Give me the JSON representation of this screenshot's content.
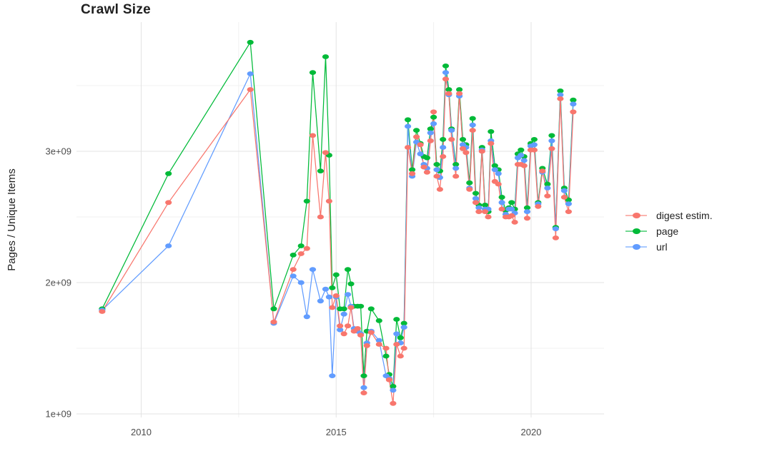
{
  "page": {
    "background": "#ffffff"
  },
  "chart_data": {
    "type": "line",
    "title": "Crawl Size",
    "xlabel": "",
    "ylabel": "Pages / Unique Items",
    "value_unit": "pages / items, in units of 1e9 (billions)",
    "grid": true,
    "x_axis": {
      "range": [
        2008.3,
        2021.9
      ],
      "ticks": [
        {
          "v": 2010,
          "label": "2010"
        },
        {
          "v": 2015,
          "label": "2015"
        },
        {
          "v": 2020,
          "label": "2020"
        }
      ],
      "minor": [
        2012.5,
        2017.5
      ]
    },
    "y_axis": {
      "range": [
        0.97,
        4.0
      ],
      "ticks": [
        {
          "v": 1,
          "label": "1e+09"
        },
        {
          "v": 2,
          "label": "2e+09"
        },
        {
          "v": 3,
          "label": "3e+09"
        }
      ],
      "minor": [
        1.5,
        2.5,
        3.5
      ]
    },
    "legend": {
      "position": "right",
      "entries": [
        {
          "label": "digest estim.",
          "color": "#F8766D"
        },
        {
          "label": "page",
          "color": "#00BA38"
        },
        {
          "label": "url",
          "color": "#619CFF"
        }
      ]
    },
    "x": [
      2009.0,
      2010.7,
      2012.8,
      2013.4,
      2013.9,
      2014.1,
      2014.25,
      2014.4,
      2014.6,
      2014.73,
      2014.82,
      2014.9,
      2015.0,
      2015.1,
      2015.2,
      2015.3,
      2015.38,
      2015.46,
      2015.55,
      2015.63,
      2015.71,
      2015.79,
      2015.9,
      2016.1,
      2016.28,
      2016.36,
      2016.46,
      2016.55,
      2016.65,
      2016.74,
      2016.84,
      2016.95,
      2017.06,
      2017.16,
      2017.25,
      2017.33,
      2017.42,
      2017.5,
      2017.58,
      2017.66,
      2017.74,
      2017.81,
      2017.89,
      2017.96,
      2018.07,
      2018.16,
      2018.25,
      2018.33,
      2018.42,
      2018.5,
      2018.58,
      2018.66,
      2018.74,
      2018.82,
      2018.9,
      2018.97,
      2019.07,
      2019.16,
      2019.25,
      2019.35,
      2019.43,
      2019.5,
      2019.58,
      2019.66,
      2019.74,
      2019.82,
      2019.9,
      2019.99,
      2020.08,
      2020.18,
      2020.29,
      2020.42,
      2020.53,
      2020.63,
      2020.75,
      2020.85,
      2020.96,
      2021.08
    ],
    "series": [
      {
        "name": "digest estim.",
        "color": "#F8766D",
        "values": [
          1.78,
          2.61,
          3.47,
          1.7,
          2.1,
          2.22,
          2.26,
          3.12,
          2.5,
          2.99,
          2.62,
          1.81,
          1.9,
          1.67,
          1.61,
          1.67,
          1.81,
          1.63,
          1.65,
          1.6,
          1.16,
          1.52,
          1.62,
          1.53,
          1.5,
          1.26,
          1.08,
          1.53,
          1.44,
          1.5,
          3.03,
          2.83,
          3.11,
          3.05,
          2.88,
          2.84,
          3.08,
          3.3,
          2.81,
          2.71,
          2.96,
          3.55,
          3.44,
          3.09,
          2.81,
          3.44,
          3.02,
          2.99,
          2.71,
          3.16,
          2.61,
          2.54,
          3.0,
          2.54,
          2.5,
          3.06,
          2.77,
          2.75,
          2.56,
          2.5,
          2.5,
          2.51,
          2.46,
          2.9,
          2.9,
          2.89,
          2.49,
          3.01,
          3.01,
          2.58,
          2.85,
          2.66,
          3.02,
          2.34,
          3.4,
          2.65,
          2.54,
          3.3
        ]
      },
      {
        "name": "page",
        "color": "#00BA38",
        "values": [
          1.8,
          2.83,
          3.83,
          1.8,
          2.21,
          2.28,
          2.62,
          3.6,
          2.85,
          3.72,
          2.97,
          1.96,
          2.06,
          1.8,
          1.8,
          2.1,
          1.99,
          1.82,
          1.82,
          1.82,
          1.29,
          1.63,
          1.8,
          1.71,
          1.44,
          1.3,
          1.21,
          1.72,
          1.58,
          1.69,
          3.24,
          2.86,
          3.16,
          3.06,
          2.96,
          2.95,
          3.17,
          3.26,
          2.9,
          2.85,
          3.09,
          3.65,
          3.47,
          3.17,
          2.9,
          3.47,
          3.09,
          3.05,
          2.76,
          3.25,
          2.68,
          2.59,
          3.03,
          2.59,
          2.54,
          3.15,
          2.89,
          2.86,
          2.65,
          2.55,
          2.57,
          2.61,
          2.56,
          2.98,
          3.01,
          2.96,
          2.57,
          3.06,
          3.09,
          2.61,
          2.87,
          2.75,
          3.12,
          2.42,
          3.46,
          2.72,
          2.63,
          3.39
        ]
      },
      {
        "name": "url",
        "color": "#619CFF",
        "values": [
          1.79,
          2.28,
          3.59,
          1.69,
          2.05,
          2.0,
          1.74,
          2.1,
          1.86,
          1.95,
          1.89,
          1.29,
          1.89,
          1.64,
          1.76,
          1.91,
          1.82,
          1.65,
          1.63,
          1.61,
          1.2,
          1.54,
          1.63,
          1.56,
          1.29,
          1.27,
          1.18,
          1.61,
          1.54,
          1.66,
          3.19,
          2.81,
          3.07,
          2.98,
          2.9,
          2.87,
          3.14,
          3.21,
          2.86,
          2.8,
          3.03,
          3.6,
          3.43,
          3.16,
          2.87,
          3.42,
          3.05,
          3.03,
          2.72,
          3.2,
          2.64,
          2.57,
          3.01,
          2.56,
          2.56,
          3.08,
          2.86,
          2.83,
          2.61,
          2.52,
          2.56,
          2.56,
          2.53,
          2.95,
          2.97,
          2.93,
          2.54,
          3.04,
          3.05,
          2.6,
          2.84,
          2.72,
          3.08,
          2.41,
          3.43,
          2.7,
          2.6,
          3.36
        ]
      }
    ]
  }
}
